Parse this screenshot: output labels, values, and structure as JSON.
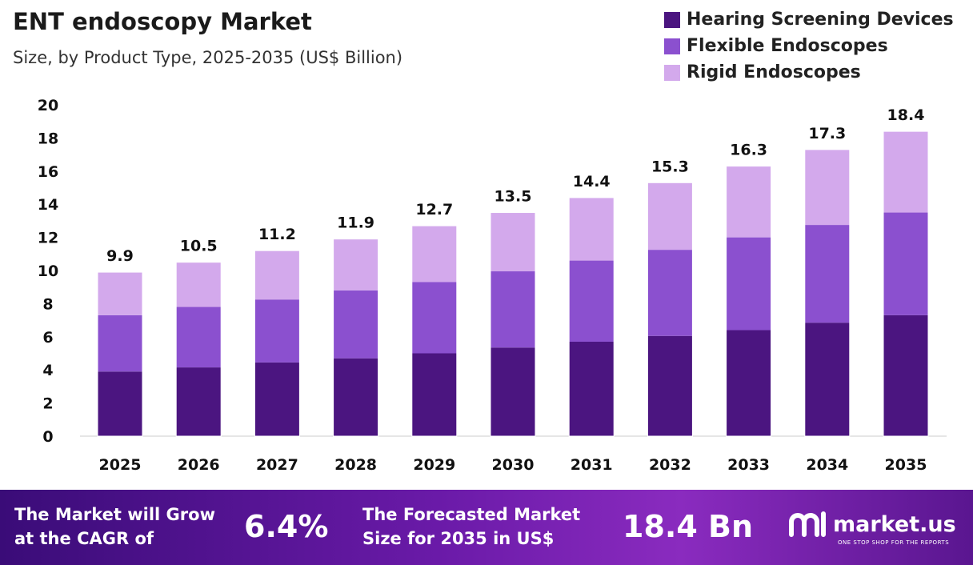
{
  "chart_data": {
    "type": "bar",
    "stacked": true,
    "title": "ENT endoscopy Market",
    "subtitle": "Size, by Product Type, 2025-2035 (US$ Billion)",
    "categories": [
      "2025",
      "2026",
      "2027",
      "2028",
      "2029",
      "2030",
      "2031",
      "2032",
      "2033",
      "2034",
      "2035"
    ],
    "series": [
      {
        "name": "Hearing Screening Devices",
        "color": "#4b1580",
        "values": [
          3.9,
          4.15,
          4.45,
          4.7,
          5.0,
          5.35,
          5.7,
          6.05,
          6.4,
          6.85,
          7.3
        ]
      },
      {
        "name": "Flexible Endoscopes",
        "color": "#8b50cf",
        "values": [
          3.4,
          3.65,
          3.8,
          4.1,
          4.3,
          4.6,
          4.9,
          5.2,
          5.6,
          5.9,
          6.2
        ]
      },
      {
        "name": "Rigid Endoscopes",
        "color": "#d3a9ec",
        "values": [
          2.6,
          2.7,
          2.95,
          3.1,
          3.4,
          3.55,
          3.8,
          4.05,
          4.3,
          4.55,
          4.9
        ]
      }
    ],
    "totals": [
      "9.9",
      "10.5",
      "11.2",
      "11.9",
      "12.7",
      "13.5",
      "14.4",
      "15.3",
      "16.3",
      "17.3",
      "18.4"
    ],
    "yticks": [
      "0",
      "2",
      "4",
      "6",
      "8",
      "10",
      "12",
      "14",
      "16",
      "18",
      "20"
    ],
    "ylim": [
      0,
      20
    ],
    "grid": false,
    "legend": "top-right"
  },
  "footer": {
    "cagr_text_1": "The Market will Grow",
    "cagr_text_2": "at the CAGR of",
    "cagr_value": "6.4%",
    "forecast_text_1": "The Forecasted Market",
    "forecast_text_2": "Size for 2035 in US$",
    "forecast_value": "18.4 Bn",
    "logo_name": "market.us",
    "logo_tagline": "ONE STOP SHOP FOR THE REPORTS"
  }
}
